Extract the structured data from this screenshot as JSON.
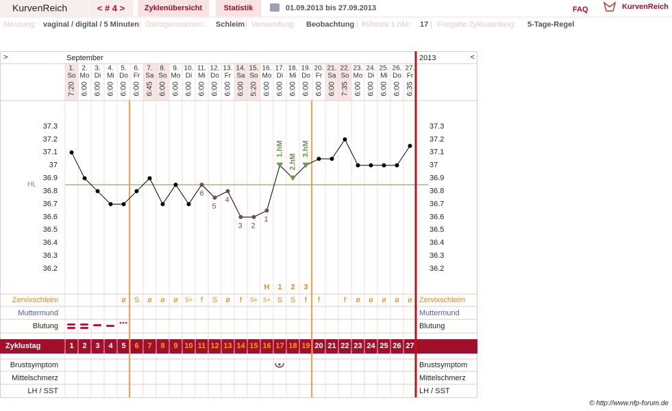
{
  "header": {
    "title": "KurvenReich",
    "cycle_nav": "< # 4 >",
    "tabs": [
      "Zyklenübersicht",
      "Statistik"
    ],
    "date_range": "01.09.2013 bis 27.09.2013",
    "faq": "FAQ",
    "logo": "KurvenReich"
  },
  "info": {
    "separator": "|",
    "items": [
      {
        "label": "Messung:",
        "value": "vaginal / digital / 5 Minuten"
      },
      {
        "label": "Östrogenzeichen:",
        "value": "Schleim"
      },
      {
        "label": "Verwendung:",
        "value": "Beobachtung"
      },
      {
        "label": "früheste 1.hM:",
        "value": "17"
      },
      {
        "label": "Freigabe Zyklusanfang:",
        "value": "5-Tage-Regel"
      }
    ]
  },
  "chart_data": {
    "type": "line",
    "nav_left": ">",
    "nav_right": "<",
    "month": "September",
    "year": "2013",
    "categories": [
      "1.",
      "2.",
      "3.",
      "4.",
      "5.",
      "6.",
      "7.",
      "8.",
      "9.",
      "10.",
      "11.",
      "12.",
      "13.",
      "14.",
      "15.",
      "16.",
      "17.",
      "18.",
      "19.",
      "20.",
      "21.",
      "22.",
      "23.",
      "24.",
      "25.",
      "26.",
      "27."
    ],
    "weekdays": [
      "So",
      "Mo",
      "Di",
      "Mi",
      "Do",
      "Fr",
      "Sa",
      "So",
      "Mo",
      "Di",
      "Mi",
      "Do",
      "Fr",
      "Sa",
      "So",
      "Mo",
      "Di",
      "Mi",
      "Do",
      "Fr",
      "Sa",
      "So",
      "Mo",
      "Di",
      "Mi",
      "Do",
      "Fr"
    ],
    "times": [
      "7:20",
      "6:00",
      "6:00",
      "6:00",
      "6:00",
      "6:00",
      "6:45",
      "6:00",
      "6:00",
      "6:00",
      "6:00",
      "6:00",
      "6:00",
      "6:00",
      "5:20",
      "6:00",
      "6:00",
      "6:00",
      "6:00",
      "6:00",
      "6:00",
      "7:35",
      "6:00",
      "6:00",
      "6:00",
      "6:00",
      "6:35"
    ],
    "series": [
      {
        "color": "#000000",
        "values": [
          37.1,
          36.9,
          36.8,
          36.7,
          36.7,
          36.8,
          36.9,
          36.7,
          36.85,
          36.7,
          36.85,
          36.75,
          36.8,
          36.6,
          36.6,
          36.65,
          37.0,
          36.9,
          37.0,
          37.05,
          37.05,
          37.2,
          37.0,
          37.0,
          37.0,
          37.0,
          37.15
        ]
      }
    ],
    "count_labels": [
      null,
      null,
      null,
      null,
      null,
      null,
      null,
      null,
      null,
      null,
      6,
      5,
      4,
      3,
      2,
      1,
      null,
      null,
      null,
      null,
      null,
      null,
      null,
      null,
      null,
      null,
      null
    ],
    "hm_labels": [
      null,
      null,
      null,
      null,
      null,
      null,
      null,
      null,
      null,
      null,
      null,
      null,
      null,
      null,
      null,
      null,
      "1.hM",
      "2.hM",
      "3.hM",
      null,
      null,
      null,
      null,
      null,
      null,
      null,
      null
    ],
    "hl": {
      "value": 36.85,
      "label": "HL",
      "color": "#6b9b4b"
    },
    "ylim": [
      36.2,
      37.3
    ],
    "yticks": [
      36.2,
      36.3,
      36.4,
      36.5,
      36.6,
      36.7,
      36.8,
      36.9,
      {
        "value": 37,
        "label": "37"
      },
      37.1,
      37.2,
      37.3
    ],
    "grid": false,
    "peak_labels": [
      null,
      null,
      null,
      null,
      null,
      null,
      null,
      null,
      null,
      null,
      null,
      null,
      null,
      null,
      null,
      "H",
      1,
      2,
      3,
      null,
      null,
      null,
      null,
      null,
      null,
      null,
      null
    ],
    "cervix": [
      null,
      null,
      null,
      null,
      "ø",
      "S",
      "ø",
      "ø",
      "ø",
      "S+",
      "f",
      "S",
      "ø",
      "f",
      "S+",
      "S+",
      "S",
      "S",
      "f",
      "f",
      null,
      "f",
      "ø",
      "ø",
      "ø",
      "ø",
      "ø"
    ],
    "row_labels": [
      "Zervixschleim",
      "Muttermund",
      "Blutung",
      "Brustsymptom",
      "Mittelschmerz",
      "LH / SST"
    ],
    "cycle_label": "Zyklustag",
    "cycle_days": [
      1,
      2,
      3,
      4,
      5,
      6,
      7,
      8,
      9,
      10,
      11,
      12,
      13,
      14,
      15,
      16,
      17,
      18,
      19,
      20,
      21,
      22,
      23,
      24,
      25,
      26,
      27
    ]
  },
  "copyright": "© http://www.nfp-forum.de"
}
